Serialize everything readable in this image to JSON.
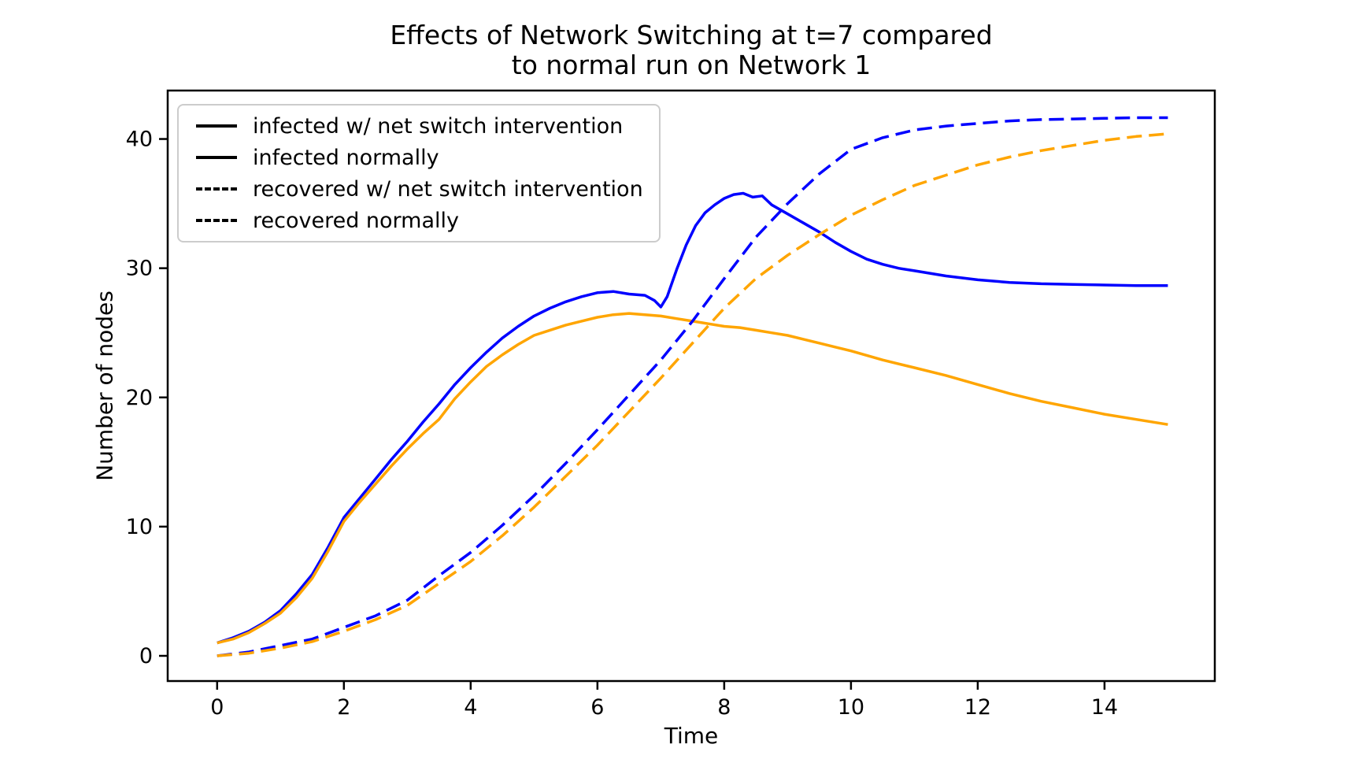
{
  "title": "Effects of Network Switching at t=7 compared\nto normal run on Network 1",
  "chart_data": {
    "type": "line",
    "title": "Effects of Network Switching at t=7 compared to normal run on Network 1",
    "xlabel": "Time",
    "ylabel": "Number of nodes",
    "xlim": [
      -0.78,
      15.74
    ],
    "ylim": [
      -1.95,
      43.75
    ],
    "xticks": [
      0,
      2,
      4,
      6,
      8,
      10,
      12,
      14
    ],
    "yticks": [
      0,
      10,
      20,
      30,
      40
    ],
    "grid": false,
    "legend_position": "upper left",
    "colors": {
      "blue": "#0000ff",
      "orange": "#ffa500",
      "legend_border": "#cccccc",
      "axis": "#000000"
    },
    "series": [
      {
        "name": "infected w/ net switch intervention",
        "color": "#0000ff",
        "style": "solid",
        "x": [
          0,
          0.25,
          0.5,
          0.75,
          1,
          1.25,
          1.5,
          1.75,
          2,
          2.25,
          2.5,
          2.75,
          3,
          3.25,
          3.5,
          3.75,
          4,
          4.25,
          4.5,
          4.75,
          5,
          5.25,
          5.5,
          5.75,
          6,
          6.25,
          6.5,
          6.75,
          6.9,
          7,
          7.1,
          7.25,
          7.4,
          7.55,
          7.7,
          7.85,
          8,
          8.15,
          8.3,
          8.45,
          8.6,
          8.75,
          9,
          9.25,
          9.5,
          9.75,
          10,
          10.25,
          10.5,
          10.75,
          11,
          11.5,
          12,
          12.5,
          13,
          13.5,
          14,
          14.5,
          15
        ],
        "y": [
          1.0,
          1.4,
          1.9,
          2.6,
          3.5,
          4.8,
          6.3,
          8.4,
          10.7,
          12.2,
          13.7,
          15.2,
          16.6,
          18.1,
          19.5,
          21.0,
          22.3,
          23.5,
          24.6,
          25.5,
          26.3,
          26.9,
          27.4,
          27.8,
          28.1,
          28.2,
          28.0,
          27.9,
          27.5,
          27.0,
          27.8,
          29.9,
          31.8,
          33.3,
          34.3,
          34.9,
          35.4,
          35.7,
          35.8,
          35.5,
          35.6,
          34.9,
          34.2,
          33.5,
          32.8,
          32.0,
          31.3,
          30.7,
          30.3,
          30.0,
          29.8,
          29.4,
          29.1,
          28.9,
          28.8,
          28.75,
          28.7,
          28.65,
          28.65
        ]
      },
      {
        "name": "infected normally",
        "color": "#ffa500",
        "style": "solid",
        "x": [
          0,
          0.25,
          0.5,
          0.75,
          1,
          1.25,
          1.5,
          1.75,
          2,
          2.25,
          2.5,
          2.75,
          3,
          3.25,
          3.5,
          3.75,
          4,
          4.25,
          4.5,
          4.75,
          5,
          5.25,
          5.5,
          5.75,
          6,
          6.25,
          6.5,
          6.75,
          7,
          7.25,
          7.5,
          7.75,
          8,
          8.25,
          8.5,
          8.75,
          9,
          9.25,
          9.5,
          9.75,
          10,
          10.5,
          11,
          11.5,
          12,
          12.5,
          13,
          13.5,
          14,
          14.5,
          15
        ],
        "y": [
          1.0,
          1.3,
          1.8,
          2.5,
          3.3,
          4.5,
          6.0,
          8.1,
          10.4,
          11.9,
          13.3,
          14.7,
          16.0,
          17.2,
          18.3,
          19.9,
          21.2,
          22.4,
          23.3,
          24.1,
          24.8,
          25.2,
          25.6,
          25.9,
          26.2,
          26.4,
          26.5,
          26.4,
          26.3,
          26.1,
          25.9,
          25.7,
          25.5,
          25.4,
          25.2,
          25.0,
          24.8,
          24.5,
          24.2,
          23.9,
          23.6,
          22.9,
          22.3,
          21.7,
          21.0,
          20.3,
          19.7,
          19.2,
          18.7,
          18.3,
          17.9
        ]
      },
      {
        "name": "recovered w/ net switch intervention",
        "color": "#0000ff",
        "style": "dashed",
        "x": [
          0,
          0.5,
          1,
          1.5,
          2,
          2.5,
          3,
          3.5,
          4,
          4.5,
          5,
          5.5,
          6,
          6.5,
          7,
          7.5,
          8,
          8.5,
          9,
          9.5,
          10,
          10.5,
          11,
          11.5,
          12,
          12.5,
          13,
          13.5,
          14,
          14.5,
          15
        ],
        "y": [
          0,
          0.3,
          0.8,
          1.3,
          2.2,
          3.1,
          4.3,
          6.2,
          8.0,
          10.1,
          12.4,
          14.9,
          17.5,
          20.2,
          22.9,
          25.9,
          29.2,
          32.4,
          35.0,
          37.3,
          39.2,
          40.1,
          40.7,
          41.0,
          41.2,
          41.4,
          41.5,
          41.55,
          41.6,
          41.65,
          41.65
        ]
      },
      {
        "name": "recovered normally",
        "color": "#ffa500",
        "style": "dashed",
        "x": [
          0,
          0.5,
          1,
          1.5,
          2,
          2.5,
          3,
          3.5,
          4,
          4.5,
          5,
          5.5,
          6,
          6.5,
          7,
          7.5,
          8,
          8.5,
          9,
          9.5,
          10,
          10.5,
          11,
          11.5,
          12,
          12.5,
          13,
          13.5,
          14,
          14.5,
          15
        ],
        "y": [
          0,
          0.2,
          0.6,
          1.1,
          1.9,
          2.8,
          3.9,
          5.6,
          7.3,
          9.3,
          11.5,
          13.9,
          16.3,
          18.9,
          21.5,
          24.2,
          26.9,
          29.2,
          31.0,
          32.6,
          34.1,
          35.3,
          36.4,
          37.2,
          38.0,
          38.6,
          39.1,
          39.5,
          39.9,
          40.2,
          40.4
        ]
      }
    ]
  }
}
